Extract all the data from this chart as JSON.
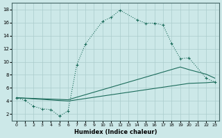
{
  "xlabel": "Humidex (Indice chaleur)",
  "xlim": [
    -0.5,
    23.5
  ],
  "ylim": [
    1,
    19
  ],
  "yticks": [
    2,
    4,
    6,
    8,
    10,
    12,
    14,
    16,
    18
  ],
  "xticks": [
    0,
    1,
    2,
    3,
    4,
    5,
    6,
    7,
    8,
    9,
    10,
    11,
    12,
    13,
    14,
    15,
    16,
    17,
    18,
    19,
    20,
    21,
    22,
    23
  ],
  "background_color": "#cce8e8",
  "line_color": "#1a6b5a",
  "grid_color": "#aacccc",
  "series": [
    {
      "x": [
        0,
        1,
        2,
        3,
        4,
        5,
        6,
        7,
        8,
        10,
        11,
        12,
        14,
        15,
        16,
        17,
        18,
        19,
        20,
        22,
        23
      ],
      "y": [
        4.5,
        4.1,
        3.2,
        2.8,
        2.7,
        1.7,
        2.5,
        9.5,
        12.7,
        16.2,
        16.8,
        17.9,
        16.4,
        15.9,
        15.9,
        15.6,
        12.8,
        10.5,
        10.6,
        7.5,
        6.9
      ],
      "linestyle": "dotted",
      "marker": "+"
    },
    {
      "x": [
        0,
        6,
        19,
        20,
        22,
        23
      ],
      "y": [
        4.5,
        4.2,
        9.2,
        8.8,
        8.1,
        7.5
      ],
      "linestyle": "solid",
      "marker": null
    },
    {
      "x": [
        0,
        6,
        19,
        20,
        22,
        23
      ],
      "y": [
        4.5,
        4.0,
        6.5,
        6.7,
        6.8,
        6.9
      ],
      "linestyle": "solid",
      "marker": null
    }
  ]
}
